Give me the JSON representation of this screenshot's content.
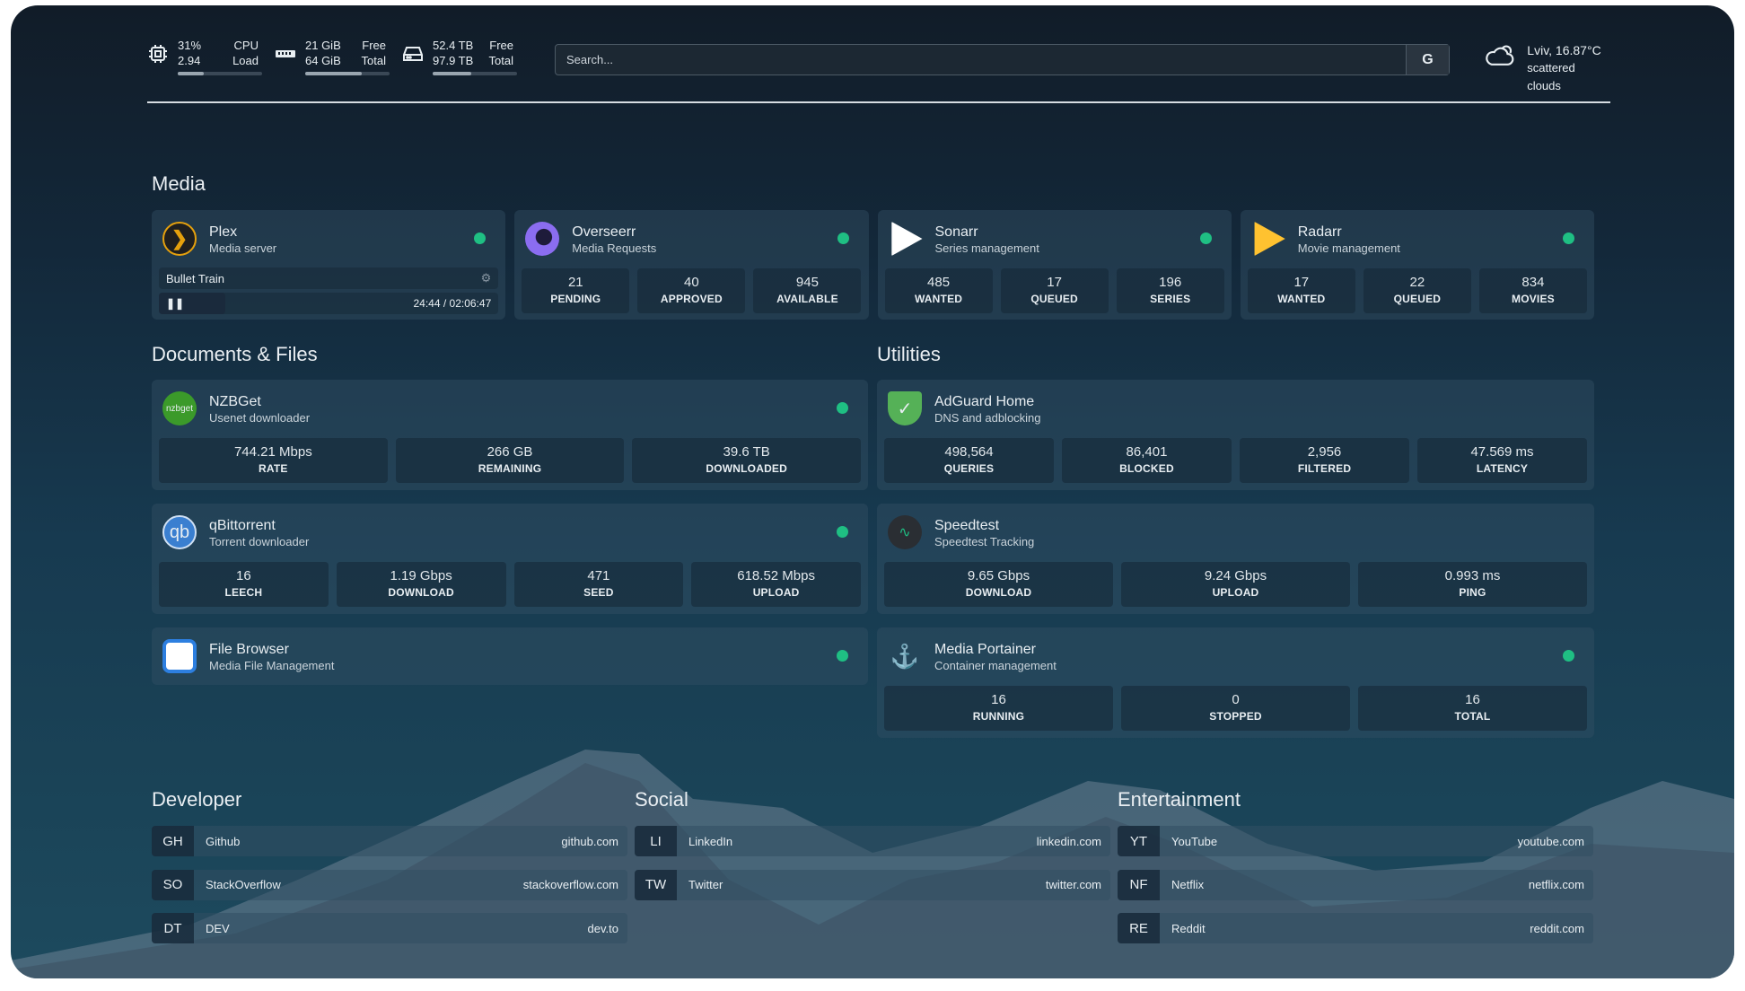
{
  "topbar": {
    "cpu": {
      "icon": "cpu-icon",
      "value1": "31%",
      "value2": "2.94",
      "label1": "CPU",
      "label2": "Load",
      "percent": 31
    },
    "memory": {
      "icon": "memory-icon",
      "value1": "21 GiB",
      "value2": "64 GiB",
      "label1": "Free",
      "label2": "Total",
      "percent": 67
    },
    "disk": {
      "icon": "disk-icon",
      "value1": "52.4 TB",
      "value2": "97.9 TB",
      "label1": "Free",
      "label2": "Total",
      "percent": 46
    },
    "search": {
      "placeholder": "Search...",
      "provider": "G"
    },
    "weather": {
      "icon": "cloud-icon",
      "location_temp": "Lviv, 16.87°C",
      "condition": "scattered clouds"
    }
  },
  "sections": {
    "media": "Media",
    "docs": "Documents & Files",
    "utilities": "Utilities",
    "developer": "Developer",
    "social": "Social",
    "entertainment": "Entertainment"
  },
  "plex": {
    "name": "Plex",
    "desc": "Media server",
    "status_color": "#1fbf83",
    "now_playing": "Bullet Train",
    "time": "24:44 / 02:06:47",
    "progress": 0.195
  },
  "media": [
    {
      "name": "Overseerr",
      "desc": "Media Requests",
      "icon": "overseerr-icon",
      "stats": [
        {
          "v": "21",
          "l": "PENDING"
        },
        {
          "v": "40",
          "l": "APPROVED"
        },
        {
          "v": "945",
          "l": "AVAILABLE"
        }
      ]
    },
    {
      "name": "Sonarr",
      "desc": "Series management",
      "icon": "sonarr-icon",
      "stats": [
        {
          "v": "485",
          "l": "WANTED"
        },
        {
          "v": "17",
          "l": "QUEUED"
        },
        {
          "v": "196",
          "l": "SERIES"
        }
      ]
    },
    {
      "name": "Radarr",
      "desc": "Movie management",
      "icon": "radarr-icon",
      "stats": [
        {
          "v": "17",
          "l": "WANTED"
        },
        {
          "v": "22",
          "l": "QUEUED"
        },
        {
          "v": "834",
          "l": "MOVIES"
        }
      ]
    }
  ],
  "docs": [
    {
      "name": "NZBGet",
      "desc": "Usenet downloader",
      "icon": "nzbget-icon",
      "dot": true,
      "stats": [
        {
          "v": "744.21 Mbps",
          "l": "RATE"
        },
        {
          "v": "266 GB",
          "l": "REMAINING"
        },
        {
          "v": "39.6 TB",
          "l": "DOWNLOADED"
        }
      ]
    },
    {
      "name": "qBittorrent",
      "desc": "Torrent downloader",
      "icon": "qbittorrent-icon",
      "dot": true,
      "stats": [
        {
          "v": "16",
          "l": "LEECH"
        },
        {
          "v": "1.19 Gbps",
          "l": "DOWNLOAD"
        },
        {
          "v": "471",
          "l": "SEED"
        },
        {
          "v": "618.52 Mbps",
          "l": "UPLOAD"
        }
      ]
    },
    {
      "name": "File Browser",
      "desc": "Media File Management",
      "icon": "file-browser-icon",
      "dot": true,
      "stats": []
    }
  ],
  "utilities": [
    {
      "name": "AdGuard Home",
      "desc": "DNS and adblocking",
      "icon": "adguard-icon",
      "dot": false,
      "stats": [
        {
          "v": "498,564",
          "l": "QUERIES"
        },
        {
          "v": "86,401",
          "l": "BLOCKED"
        },
        {
          "v": "2,956",
          "l": "FILTERED"
        },
        {
          "v": "47.569 ms",
          "l": "LATENCY"
        }
      ]
    },
    {
      "name": "Speedtest",
      "desc": "Speedtest Tracking",
      "icon": "speedtest-icon",
      "dot": false,
      "stats": [
        {
          "v": "9.65 Gbps",
          "l": "DOWNLOAD"
        },
        {
          "v": "9.24 Gbps",
          "l": "UPLOAD"
        },
        {
          "v": "0.993 ms",
          "l": "PING"
        }
      ]
    },
    {
      "name": "Media Portainer",
      "desc": "Container management",
      "icon": "portainer-icon",
      "dot": true,
      "stats": [
        {
          "v": "16",
          "l": "RUNNING"
        },
        {
          "v": "0",
          "l": "STOPPED"
        },
        {
          "v": "16",
          "l": "TOTAL"
        }
      ]
    }
  ],
  "bookmarks": {
    "developer": [
      {
        "ab": "GH",
        "name": "Github",
        "url": "github.com"
      },
      {
        "ab": "SO",
        "name": "StackOverflow",
        "url": "stackoverflow.com"
      },
      {
        "ab": "DT",
        "name": "DEV",
        "url": "dev.to"
      }
    ],
    "social": [
      {
        "ab": "LI",
        "name": "LinkedIn",
        "url": "linkedin.com"
      },
      {
        "ab": "TW",
        "name": "Twitter",
        "url": "twitter.com"
      }
    ],
    "entertainment": [
      {
        "ab": "YT",
        "name": "YouTube",
        "url": "youtube.com"
      },
      {
        "ab": "NF",
        "name": "Netflix",
        "url": "netflix.com"
      },
      {
        "ab": "RE",
        "name": "Reddit",
        "url": "reddit.com"
      }
    ]
  }
}
